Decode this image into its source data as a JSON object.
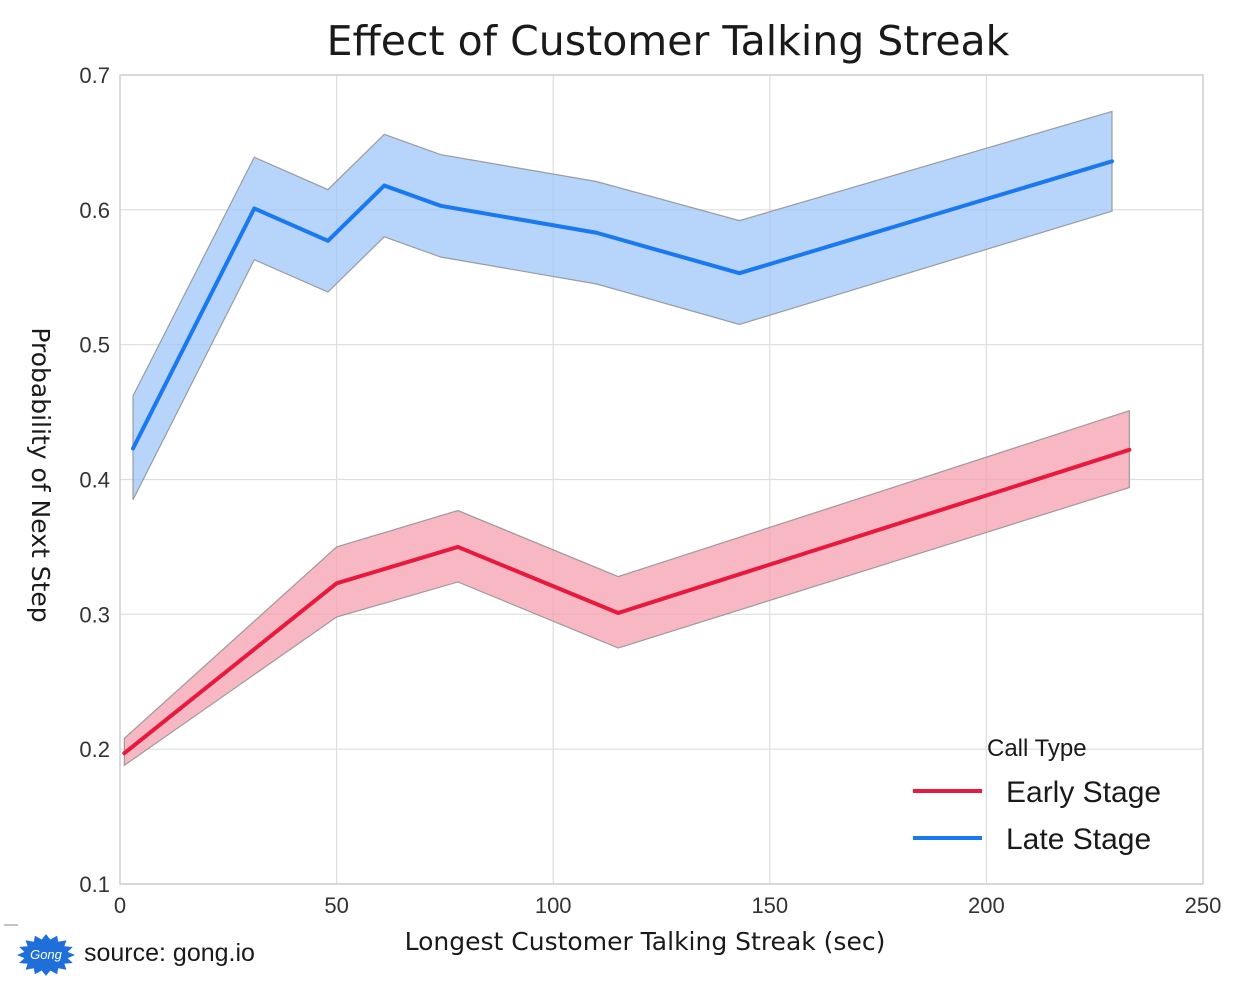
{
  "chart_data": {
    "type": "line",
    "title": "Effect of Customer Talking Streak",
    "xlabel": "Longest Customer Talking Streak (sec)",
    "ylabel": "Probability of Next Step",
    "xlim": [
      0,
      250
    ],
    "ylim": [
      0.1,
      0.7
    ],
    "xticks": [
      0,
      50,
      100,
      150,
      200,
      250
    ],
    "xtick_labels": [
      "0",
      "50",
      "100",
      "150",
      "200",
      "250"
    ],
    "yticks": [
      0.1,
      0.2,
      0.3,
      0.4,
      0.5,
      0.6,
      0.7
    ],
    "ytick_labels": [
      "0.1",
      "0.2",
      "0.3",
      "0.4",
      "0.5",
      "0.6",
      "0.7"
    ],
    "grid": true,
    "legend": {
      "title": "Call Type",
      "placement": "bottom-right"
    },
    "series": [
      {
        "name": "Early Stage",
        "color": "#e8193c",
        "band_color": "#f4a0b0",
        "x": [
          1,
          50,
          78,
          115,
          233
        ],
        "y": [
          0.197,
          0.323,
          0.35,
          0.301,
          0.422
        ],
        "lower": [
          0.188,
          0.298,
          0.324,
          0.275,
          0.394
        ],
        "upper": [
          0.208,
          0.35,
          0.377,
          0.328,
          0.451
        ]
      },
      {
        "name": "Late Stage",
        "color": "#1a78f0",
        "band_color": "#9fc6f8",
        "x": [
          3,
          31,
          48,
          61,
          74,
          110,
          143,
          229
        ],
        "y": [
          0.423,
          0.601,
          0.577,
          0.618,
          0.603,
          0.583,
          0.553,
          0.636
        ],
        "lower": [
          0.385,
          0.563,
          0.539,
          0.58,
          0.565,
          0.545,
          0.515,
          0.599
        ],
        "upper": [
          0.462,
          0.639,
          0.615,
          0.656,
          0.641,
          0.621,
          0.592,
          0.673
        ]
      }
    ]
  },
  "source": {
    "logo_text": "Gong",
    "text": "source: gong.io"
  }
}
